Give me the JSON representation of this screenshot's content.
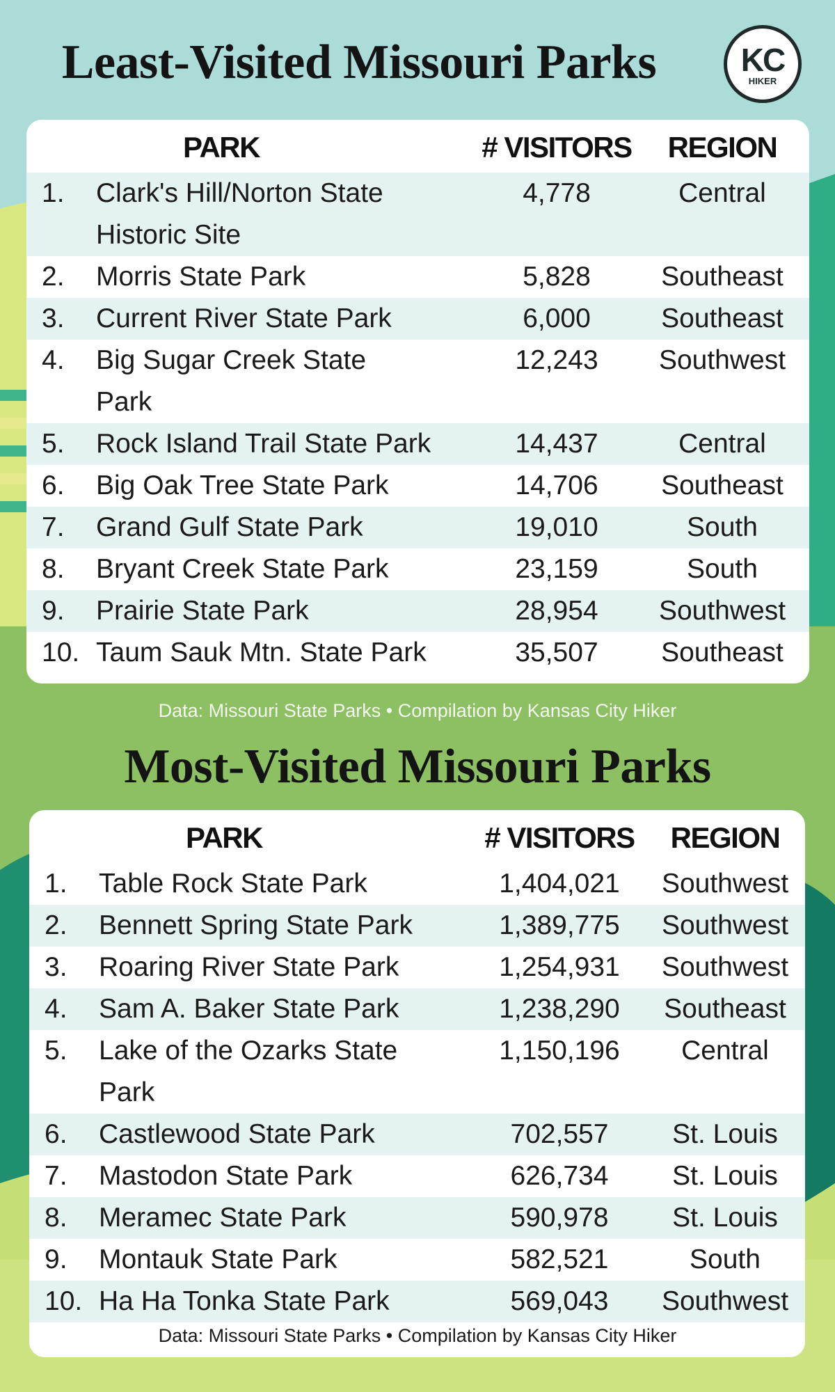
{
  "logo": {
    "initials": "KC",
    "label": "HIKER"
  },
  "tables": [
    {
      "title": "Least-Visited Missouri Parks",
      "columns": [
        "PARK",
        "# VISITORS",
        "REGION"
      ],
      "rows": [
        {
          "rank": "1.",
          "park": [
            "Clark's Hill/Norton State",
            "Historic Site"
          ],
          "visitors": "4,778",
          "region": "Central"
        },
        {
          "rank": "2.",
          "park": [
            "Morris State Park"
          ],
          "visitors": "5,828",
          "region": "Southeast"
        },
        {
          "rank": "3.",
          "park": [
            "Current River State Park"
          ],
          "visitors": "6,000",
          "region": "Southeast"
        },
        {
          "rank": "4.",
          "park": [
            "Big Sugar Creek State",
            "Park"
          ],
          "visitors": "12,243",
          "region": "Southwest"
        },
        {
          "rank": "5.",
          "park": [
            "Rock Island Trail State Park"
          ],
          "visitors": "14,437",
          "region": "Central"
        },
        {
          "rank": "6.",
          "park": [
            "Big Oak Tree State Park"
          ],
          "visitors": "14,706",
          "region": "Southeast"
        },
        {
          "rank": "7.",
          "park": [
            "Grand Gulf State Park"
          ],
          "visitors": "19,010",
          "region": "South"
        },
        {
          "rank": "8.",
          "park": [
            "Bryant Creek State Park"
          ],
          "visitors": "23,159",
          "region": "South"
        },
        {
          "rank": "9.",
          "park": [
            "Prairie State Park"
          ],
          "visitors": "28,954",
          "region": "Southwest"
        },
        {
          "rank": "10.",
          "park": [
            "Taum Sauk Mtn. State Park"
          ],
          "visitors": "35,507",
          "region": "Southeast"
        }
      ],
      "source": "Data: Missouri State Parks • Compilation by Kansas City Hiker"
    },
    {
      "title": "Most-Visited Missouri Parks",
      "columns": [
        "PARK",
        "# VISITORS",
        "REGION"
      ],
      "rows": [
        {
          "rank": "1.",
          "park": [
            "Table Rock State Park"
          ],
          "visitors": "1,404,021",
          "region": "Southwest"
        },
        {
          "rank": "2.",
          "park": [
            "Bennett Spring State Park"
          ],
          "visitors": "1,389,775",
          "region": "Southwest"
        },
        {
          "rank": "3.",
          "park": [
            "Roaring River State Park"
          ],
          "visitors": "1,254,931",
          "region": "Southwest"
        },
        {
          "rank": "4.",
          "park": [
            "Sam A. Baker State Park"
          ],
          "visitors": "1,238,290",
          "region": "Southeast"
        },
        {
          "rank": "5.",
          "park": [
            "Lake of the Ozarks State",
            "Park"
          ],
          "visitors": "1,150,196",
          "region": "Central"
        },
        {
          "rank": "6.",
          "park": [
            "Castlewood State Park"
          ],
          "visitors": "702,557",
          "region": "St. Louis"
        },
        {
          "rank": "7.",
          "park": [
            "Mastodon State Park"
          ],
          "visitors": "626,734",
          "region": "St. Louis"
        },
        {
          "rank": "8.",
          "park": [
            "Meramec State Park"
          ],
          "visitors": "590,978",
          "region": "St. Louis"
        },
        {
          "rank": "9.",
          "park": [
            "Montauk State Park"
          ],
          "visitors": "582,521",
          "region": "South"
        },
        {
          "rank": "10.",
          "park": [
            "Ha Ha Tonka State Park"
          ],
          "visitors": "569,043",
          "region": "Southwest"
        }
      ],
      "source": "Data: Missouri State Parks • Compilation by Kansas City Hiker"
    }
  ]
}
